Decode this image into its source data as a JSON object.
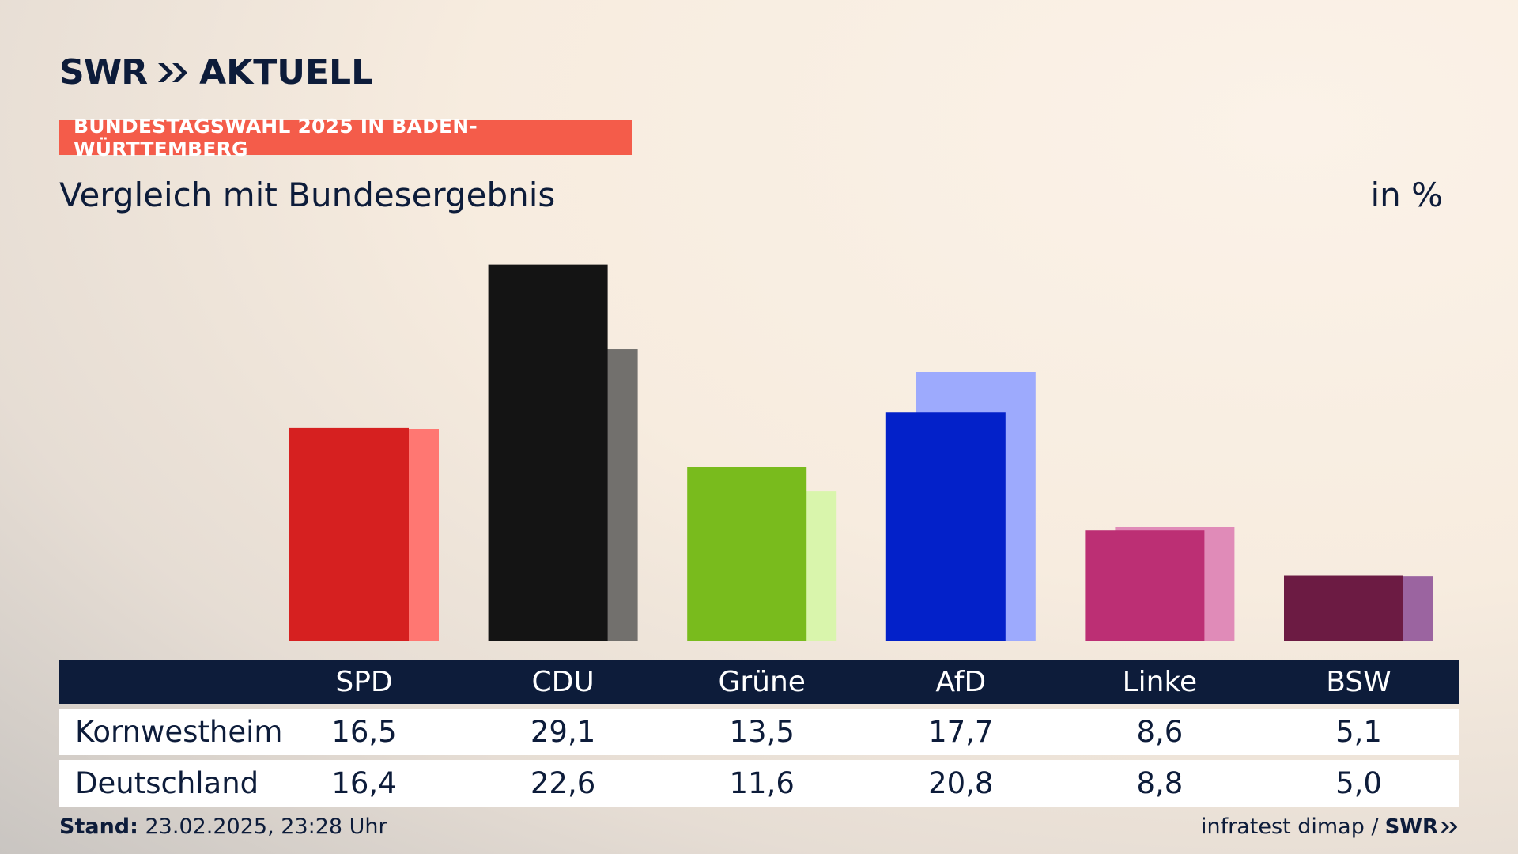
{
  "header": {
    "logo_swr": "SWR",
    "logo_aktuell": "AKTUELL",
    "tag": "BUNDESTAGSWAHL 2025 IN BADEN-WÜRTTEMBERG",
    "subtitle": "Vergleich mit Bundesergebnis",
    "unit": "in %"
  },
  "colors": {
    "tag_bg": "#f45c4a",
    "navy": "#0d1c3a"
  },
  "chart_data": {
    "type": "bar",
    "title": "Vergleich mit Bundesergebnis",
    "unit": "in %",
    "categories": [
      "SPD",
      "CDU",
      "Grüne",
      "AfD",
      "Linke",
      "BSW"
    ],
    "series": [
      {
        "name": "Kornwestheim",
        "values": [
          16.5,
          29.1,
          13.5,
          17.7,
          8.6,
          5.1
        ]
      },
      {
        "name": "Deutschland",
        "values": [
          16.4,
          22.6,
          11.6,
          20.8,
          8.8,
          5.0
        ]
      }
    ],
    "colors": [
      {
        "primary": "#d62020",
        "secondary": "#ff7772"
      },
      {
        "primary": "#141414",
        "secondary": "#72706d"
      },
      {
        "primary": "#79bb1d",
        "secondary": "#d9f5ac"
      },
      {
        "primary": "#0321c9",
        "secondary": "#9daafd"
      },
      {
        "primary": "#bc2f74",
        "secondary": "#e08bb8"
      },
      {
        "primary": "#6c1b43",
        "secondary": "#9b64a0"
      }
    ],
    "ylim": [
      0,
      30
    ],
    "grid": false,
    "legend": "table-below"
  },
  "table": {
    "headers": [
      "SPD",
      "CDU",
      "Grüne",
      "AfD",
      "Linke",
      "BSW"
    ],
    "rows": [
      {
        "label": "Kornwestheim",
        "values": [
          "16,5",
          "29,1",
          "13,5",
          "17,7",
          "8,6",
          "5,1"
        ]
      },
      {
        "label": "Deutschland",
        "values": [
          "16,4",
          "22,6",
          "11,6",
          "20,8",
          "8,8",
          "5,0"
        ]
      }
    ]
  },
  "footer": {
    "stand_label": "Stand:",
    "stand_value": " 23.02.2025, 23:28 Uhr",
    "source": "infratest dimap /",
    "swr": "SWR"
  }
}
